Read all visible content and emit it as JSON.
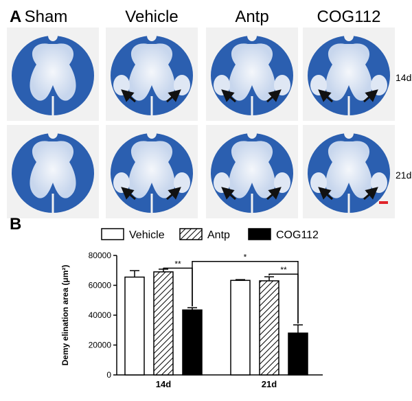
{
  "panel_a": {
    "label": "A",
    "columns": [
      "Sham",
      "Vehicle",
      "Antp",
      "COG112"
    ],
    "rows": [
      "14d",
      "21d"
    ],
    "arrows": [
      [
        0,
        1,
        1,
        1
      ],
      [
        0,
        1,
        1,
        1
      ]
    ],
    "stain_color": "#2b5fb0",
    "scale_bar_color": "#e0242a"
  },
  "panel_b": {
    "label": "B",
    "legend": [
      "Vehicle",
      "Antp",
      "COG112"
    ],
    "significance": [
      "**",
      "**",
      "*"
    ]
  },
  "chart_data": {
    "type": "bar",
    "categories": [
      "14d",
      "21d"
    ],
    "series": [
      {
        "name": "Vehicle",
        "values": [
          65500,
          63300
        ],
        "errors": [
          4300,
          500
        ],
        "fill": "white"
      },
      {
        "name": "Antp",
        "values": [
          69000,
          63000
        ],
        "errors": [
          1800,
          2700
        ],
        "fill": "hatched"
      },
      {
        "name": "COG112",
        "values": [
          43500,
          28000
        ],
        "errors": [
          1500,
          5500
        ],
        "fill": "black"
      }
    ],
    "ylabel": "Demy elination area (μm²)",
    "xlabel": "",
    "ylim": [
      0,
      80000
    ],
    "yticks": [
      0,
      20000,
      40000,
      60000,
      80000
    ],
    "grid": false,
    "legend_position": "top"
  }
}
